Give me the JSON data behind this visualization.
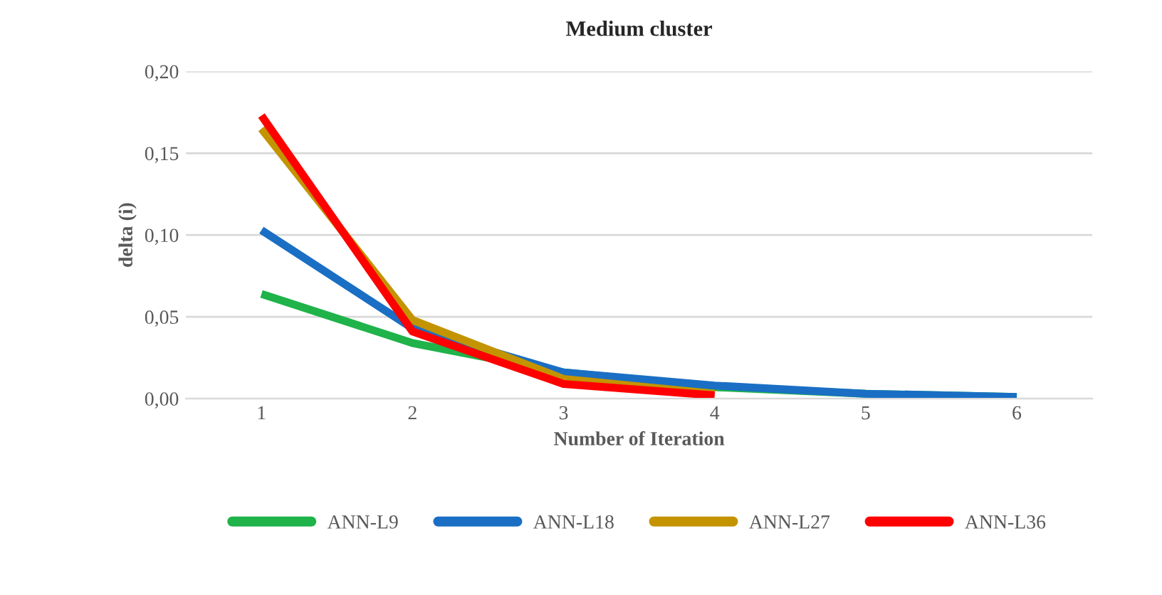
{
  "chart_data": {
    "type": "line",
    "title": "Medium cluster",
    "xlabel": "Number of Iteration",
    "ylabel": "delta (i)",
    "categories": [
      "1",
      "2",
      "3",
      "4",
      "5",
      "6"
    ],
    "series": [
      {
        "name": "ANN-L9",
        "color": "#1fb34a",
        "values": [
          0.064,
          0.034,
          0.016,
          0.007,
          0.003,
          0.001
        ]
      },
      {
        "name": "ANN-L18",
        "color": "#1a6fc4",
        "values": [
          0.103,
          0.043,
          0.016,
          0.008,
          0.003,
          0.001
        ]
      },
      {
        "name": "ANN-L27",
        "color": "#c39400",
        "values": [
          0.165,
          0.048,
          0.012,
          0.003,
          null,
          null
        ]
      },
      {
        "name": "ANN-L36",
        "color": "#ff0000",
        "values": [
          0.173,
          0.041,
          0.009,
          0.002,
          null,
          null
        ]
      }
    ],
    "ylim": [
      0,
      0.2
    ],
    "yticks": [
      {
        "value": 0,
        "label": "0,00"
      },
      {
        "value": 0.05,
        "label": "0,05"
      },
      {
        "value": 0.1,
        "label": "0,10"
      },
      {
        "value": 0.15,
        "label": "0,15"
      },
      {
        "value": 0.2,
        "label": "0,20"
      }
    ],
    "grid": "y",
    "legend": "bottom",
    "line_style": "solid"
  }
}
